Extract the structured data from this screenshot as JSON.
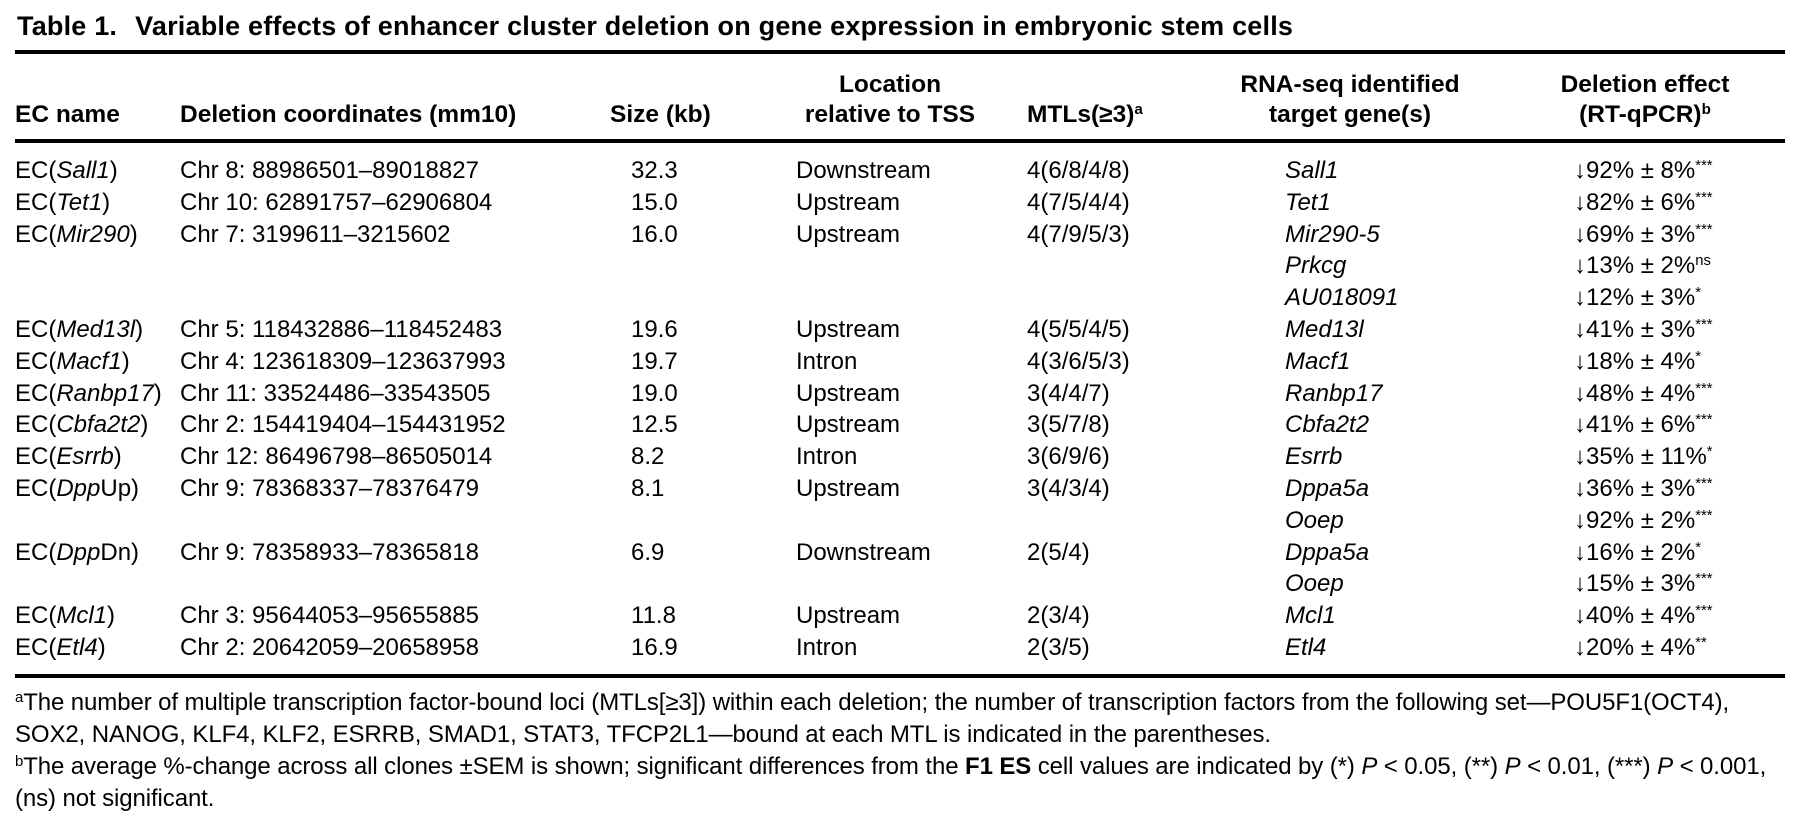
{
  "title": {
    "label": "Table 1.",
    "text": "Variable effects of enhancer cluster deletion on gene expression in embryonic stem cells"
  },
  "columns": {
    "ec_name": "EC name",
    "coords": "Deletion coordinates (mm10)",
    "size": "Size (kb)",
    "location_line1": "Location",
    "location_line2": "relative to TSS",
    "mtls": "MTLs(≥3)",
    "mtls_sup": "a",
    "genes_line1": "RNA-seq identified",
    "genes_line2": "target gene(s)",
    "effect_line1": "Deletion effect",
    "effect_line2": "(RT-qPCR)",
    "effect_sup": "b"
  },
  "rows": [
    {
      "name": {
        "pre": "EC(",
        "it": "Sall1",
        "post": ")"
      },
      "coords": "Chr 8: 88986501–89018827",
      "size": "32.3",
      "location": "Downstream",
      "mtls": "4(6/8/4/8)",
      "genes": [
        {
          "gene": "Sall1",
          "effect": "↓92% ± 8%",
          "sig": "***"
        }
      ]
    },
    {
      "name": {
        "pre": "EC(",
        "it": "Tet1",
        "post": ")"
      },
      "coords": "Chr 10: 62891757–62906804",
      "size": "15.0",
      "location": "Upstream",
      "mtls": "4(7/5/4/4)",
      "genes": [
        {
          "gene": "Tet1",
          "effect": "↓82% ± 6%",
          "sig": "***"
        }
      ]
    },
    {
      "name": {
        "pre": "EC(",
        "it": "Mir290",
        "post": ")"
      },
      "coords": "Chr 7: 3199611–3215602",
      "size": "16.0",
      "location": "Upstream",
      "mtls": "4(7/9/5/3)",
      "genes": [
        {
          "gene": "Mir290-5",
          "effect": "↓69% ± 3%",
          "sig": "***"
        },
        {
          "gene": "Prkcg",
          "effect": "↓13% ± 2%",
          "sig": "ns"
        },
        {
          "gene": "AU018091",
          "effect": "↓12% ± 3%",
          "sig": "*"
        }
      ]
    },
    {
      "name": {
        "pre": "EC(",
        "it": "Med13l",
        "post": ")"
      },
      "coords": "Chr 5: 118432886–118452483",
      "size": "19.6",
      "location": "Upstream",
      "mtls": "4(5/5/4/5)",
      "genes": [
        {
          "gene": "Med13l",
          "effect": "↓41% ± 3%",
          "sig": "***"
        }
      ]
    },
    {
      "name": {
        "pre": "EC(",
        "it": "Macf1",
        "post": ")"
      },
      "coords": "Chr 4: 123618309–123637993",
      "size": "19.7",
      "location": "Intron",
      "mtls": "4(3/6/5/3)",
      "genes": [
        {
          "gene": "Macf1",
          "effect": "↓18% ± 4%",
          "sig": "*"
        }
      ]
    },
    {
      "name": {
        "pre": "EC(",
        "it": "Ranbp17",
        "post": ")"
      },
      "coords": "Chr 11: 33524486–33543505",
      "size": "19.0",
      "location": "Upstream",
      "mtls": "3(4/4/7)",
      "genes": [
        {
          "gene": "Ranbp17",
          "effect": "↓48% ± 4%",
          "sig": "***"
        }
      ]
    },
    {
      "name": {
        "pre": "EC(",
        "it": "Cbfa2t2",
        "post": ")"
      },
      "coords": "Chr 2: 154419404–154431952",
      "size": "12.5",
      "location": "Upstream",
      "mtls": "3(5/7/8)",
      "genes": [
        {
          "gene": "Cbfa2t2",
          "effect": "↓41% ± 6%",
          "sig": "***"
        }
      ]
    },
    {
      "name": {
        "pre": "EC(",
        "it": "Esrrb",
        "post": ")"
      },
      "coords": "Chr 12: 86496798–86505014",
      "size": "8.2",
      "location": "Intron",
      "mtls": "3(6/9/6)",
      "genes": [
        {
          "gene": "Esrrb",
          "effect": "↓35% ± 11%",
          "sig": "*"
        }
      ]
    },
    {
      "name": {
        "pre": "EC(",
        "it": "Dpp",
        "post": "Up)"
      },
      "coords": "Chr 9: 78368337–78376479",
      "size": "8.1",
      "location": "Upstream",
      "mtls": "3(4/3/4)",
      "genes": [
        {
          "gene": "Dppa5a",
          "effect": "↓36% ± 3%",
          "sig": "***"
        },
        {
          "gene": "Ooep",
          "effect": "↓92% ± 2%",
          "sig": "***"
        }
      ]
    },
    {
      "name": {
        "pre": "EC(",
        "it": "Dpp",
        "post": "Dn)"
      },
      "coords": "Chr 9: 78358933–78365818",
      "size": "6.9",
      "location": "Downstream",
      "mtls": "2(5/4)",
      "genes": [
        {
          "gene": "Dppa5a",
          "effect": "↓16% ± 2%",
          "sig": "*"
        },
        {
          "gene": "Ooep",
          "effect": "↓15% ± 3%",
          "sig": "***"
        }
      ]
    },
    {
      "name": {
        "pre": "EC(",
        "it": "Mcl1",
        "post": ")"
      },
      "coords": "Chr 3: 95644053–95655885",
      "size": "11.8",
      "location": "Upstream",
      "mtls": "2(3/4)",
      "genes": [
        {
          "gene": "Mcl1",
          "effect": "↓40% ± 4%",
          "sig": "***"
        }
      ]
    },
    {
      "name": {
        "pre": "EC(",
        "it": "Etl4",
        "post": ")"
      },
      "coords": "Chr 2: 20642059–20658958",
      "size": "16.9",
      "location": "Intron",
      "mtls": "2(3/5)",
      "genes": [
        {
          "gene": "Etl4",
          "effect": "↓20% ± 4%",
          "sig": "**"
        }
      ]
    }
  ],
  "footnotes": [
    {
      "id": "a",
      "segments": [
        {
          "s": "sup",
          "t": "a"
        },
        {
          "s": "",
          "t": "The number of multiple transcription factor-bound loci (MTLs[≥3]) within each deletion; the number of transcription factors from the following set—POU5F1(OCT4), SOX2, NANOG, KLF4, KLF2, ESRRB, SMAD1, STAT3, TFCP2L1—bound at each MTL is indicated in the parentheses."
        }
      ]
    },
    {
      "id": "b",
      "segments": [
        {
          "s": "sup",
          "t": "b"
        },
        {
          "s": "",
          "t": "The average %-change across all clones ±SEM is shown; significant differences from the "
        },
        {
          "s": "b",
          "t": "F1 ES"
        },
        {
          "s": "",
          "t": " cell values are indicated by (*) "
        },
        {
          "s": "i",
          "t": "P"
        },
        {
          "s": "",
          "t": " < 0.05, (**) "
        },
        {
          "s": "i",
          "t": "P"
        },
        {
          "s": "",
          "t": " < 0.01, (***) "
        },
        {
          "s": "i",
          "t": "P"
        },
        {
          "s": "",
          "t": " < 0.001, (ns) not significant."
        }
      ]
    }
  ]
}
